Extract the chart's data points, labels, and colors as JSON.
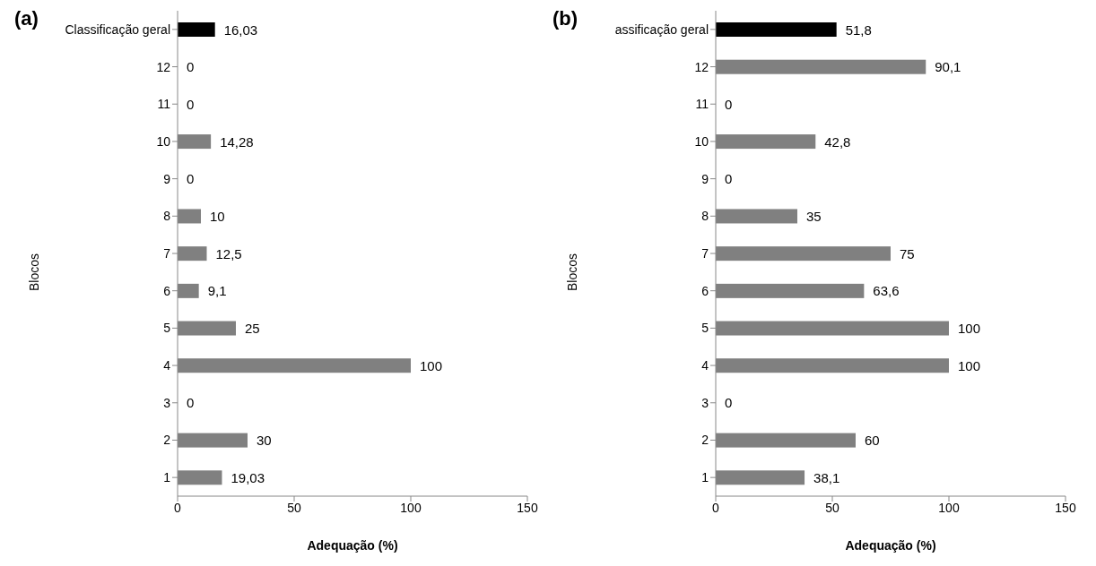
{
  "chart_data": [
    {
      "type": "bar",
      "orientation": "horizontal",
      "title": "(a)",
      "xlabel": "Adequação (%)",
      "ylabel": "Blocos",
      "categories": [
        "Classificação geral",
        "12",
        "11",
        "10",
        "9",
        "8",
        "7",
        "6",
        "5",
        "4",
        "3",
        "2",
        "1"
      ],
      "values": [
        16.03,
        0,
        0,
        14.28,
        0,
        10,
        12.5,
        9.1,
        25,
        100,
        0,
        30,
        19.03
      ],
      "colors": [
        "#000000",
        "#808080",
        "#808080",
        "#808080",
        "#808080",
        "#808080",
        "#808080",
        "#808080",
        "#808080",
        "#808080",
        "#808080",
        "#808080",
        "#808080"
      ],
      "value_labels": [
        "16,03",
        "0",
        "0",
        "14,28",
        "0",
        "10",
        "12,5",
        "9,1",
        "25",
        "100",
        "0",
        "30",
        "19,03"
      ],
      "xlim": [
        0,
        150
      ],
      "xticks": [
        0,
        50,
        100,
        150
      ],
      "grid": false,
      "legend": false
    },
    {
      "type": "bar",
      "orientation": "horizontal",
      "title": "(b)",
      "xlabel": "Adequação (%)",
      "ylabel": "Blocos",
      "categories": [
        "assificação geral",
        "12",
        "11",
        "10",
        "9",
        "8",
        "7",
        "6",
        "5",
        "4",
        "3",
        "2",
        "1"
      ],
      "values": [
        51.8,
        90.1,
        0,
        42.8,
        0,
        35,
        75,
        63.6,
        100,
        100,
        0,
        60,
        38.1
      ],
      "colors": [
        "#000000",
        "#808080",
        "#808080",
        "#808080",
        "#808080",
        "#808080",
        "#808080",
        "#808080",
        "#808080",
        "#808080",
        "#808080",
        "#808080",
        "#808080"
      ],
      "value_labels": [
        "51,8",
        "90,1",
        "0",
        "42,8",
        "0",
        "35",
        "75",
        "63,6",
        "100",
        "100",
        "0",
        "60",
        "38,1"
      ],
      "xlim": [
        0,
        150
      ],
      "xticks": [
        0,
        50,
        100,
        150
      ],
      "grid": false,
      "legend": false
    }
  ]
}
